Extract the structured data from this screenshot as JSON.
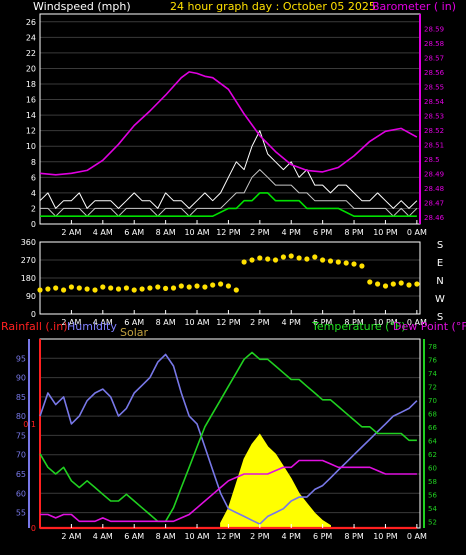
{
  "header": {
    "left_title": "Windspeed (mph)",
    "center_title": "24 hour graph day : October 05 2025",
    "right_title": "Barometer ( in)"
  },
  "bottom_header": {
    "rainfall": "Rainfall (.in)",
    "humidity": "Humidity",
    "solar": "Solar",
    "temperature": "Temperature (°F)",
    "dewpoint": "Dew Point (°F)"
  },
  "colors": {
    "background": "#000000",
    "axis": "#ffffff",
    "grid": "#3a3a3a",
    "wind": "#c8c8c8",
    "gust": "#ffffff",
    "wind_avg": "#00e000",
    "barometer": "#e000e0",
    "direction": "#ffe000",
    "humidity": "#7878e8",
    "temperature": "#20d020",
    "dewpoint": "#e010e0",
    "solar": "#ffff00",
    "rain": "#ff2020",
    "header_yellow": "#ffe000",
    "header_white": "#ffffff",
    "header_magenta": "#e000e0",
    "rain_label": "#ff2020",
    "humidity_label": "#8080ff",
    "solar_label": "#c0a040",
    "temp_label": "#20e020",
    "dew_label": "#e010e0"
  },
  "x_ticks": [
    "2 AM",
    "4 AM",
    "6 AM",
    "8 AM",
    "10 AM",
    "12 PM",
    "2 PM",
    "4 PM",
    "6 PM",
    "8 PM",
    "10 PM",
    "0 AM"
  ],
  "chart_data": [
    {
      "type": "line",
      "name": "wind_barometer",
      "x_unit": "hours",
      "xlim": [
        0,
        24.2
      ],
      "wind_ylim": [
        0,
        27
      ],
      "wind_ticks": [
        "0",
        "2",
        "4",
        "6",
        "8",
        "10",
        "12",
        "14",
        "16",
        "18",
        "20",
        "22",
        "24",
        "26"
      ],
      "baro_ylim": [
        28.455,
        28.6
      ],
      "baro_ticks": [
        "28.46",
        "28.47",
        "28.48",
        "28.49",
        "28.5",
        "28.51",
        "28.52",
        "28.53",
        "28.54",
        "28.55",
        "28.56",
        "28.57",
        "28.58",
        "28.59"
      ],
      "series": [
        {
          "key": "gust",
          "x": [
            0,
            0.5,
            1,
            1.5,
            2,
            2.5,
            3,
            3.5,
            4,
            4.5,
            5,
            5.5,
            6,
            6.5,
            7,
            7.5,
            8,
            8.5,
            9,
            9.5,
            10,
            10.5,
            11,
            11.5,
            12,
            12.5,
            13,
            13.5,
            14,
            14.5,
            15,
            15.5,
            16,
            16.5,
            17,
            17.5,
            18,
            18.5,
            19,
            19.5,
            20,
            20.5,
            21,
            21.5,
            22,
            22.5,
            23,
            23.5,
            24
          ],
          "y": [
            3,
            4,
            2,
            3,
            3,
            4,
            2,
            3,
            3,
            3,
            2,
            3,
            4,
            3,
            3,
            2,
            4,
            3,
            3,
            2,
            3,
            4,
            3,
            4,
            6,
            8,
            7,
            10,
            12,
            9,
            8,
            7,
            8,
            6,
            7,
            5,
            5,
            4,
            5,
            5,
            4,
            3,
            3,
            4,
            3,
            2,
            3,
            2,
            3
          ]
        },
        {
          "key": "wind",
          "x": [
            0,
            0.5,
            1,
            1.5,
            2,
            2.5,
            3,
            3.5,
            4,
            4.5,
            5,
            5.5,
            6,
            6.5,
            7,
            7.5,
            8,
            8.5,
            9,
            9.5,
            10,
            10.5,
            11,
            11.5,
            12,
            12.5,
            13,
            13.5,
            14,
            14.5,
            15,
            15.5,
            16,
            16.5,
            17,
            17.5,
            18,
            18.5,
            19,
            19.5,
            20,
            20.5,
            21,
            21.5,
            22,
            22.5,
            23,
            23.5,
            24
          ],
          "y": [
            2,
            2,
            1,
            2,
            2,
            2,
            1,
            2,
            2,
            2,
            1,
            2,
            2,
            2,
            2,
            1,
            2,
            2,
            2,
            1,
            2,
            2,
            2,
            2,
            3,
            4,
            4,
            6,
            7,
            6,
            5,
            5,
            5,
            4,
            4,
            3,
            3,
            3,
            3,
            3,
            2,
            2,
            2,
            2,
            2,
            1,
            2,
            1,
            2
          ]
        },
        {
          "key": "wind_avg",
          "x": [
            0,
            1,
            2,
            3,
            4,
            5,
            6,
            7,
            8,
            9,
            10,
            11,
            12,
            12.5,
            13,
            13.5,
            14,
            14.5,
            15,
            15.5,
            16,
            16.5,
            17,
            18,
            19,
            20,
            21,
            22,
            23,
            24
          ],
          "y": [
            1,
            1,
            1,
            1,
            1,
            1,
            1,
            1,
            1,
            1,
            1,
            1,
            2,
            2,
            3,
            3,
            4,
            4,
            3,
            3,
            3,
            3,
            2,
            2,
            2,
            1,
            1,
            1,
            1,
            1
          ]
        },
        {
          "key": "barometer",
          "x": [
            0,
            1,
            2,
            3,
            4,
            5,
            6,
            7,
            8,
            9,
            9.5,
            10,
            10.5,
            11,
            12,
            13,
            14,
            15,
            16,
            17,
            18,
            19,
            20,
            21,
            22,
            23,
            24
          ],
          "y": [
            28.49,
            28.489,
            28.49,
            28.492,
            28.499,
            28.51,
            28.523,
            28.533,
            28.544,
            28.556,
            28.56,
            28.559,
            28.557,
            28.556,
            28.548,
            28.531,
            28.516,
            28.505,
            28.496,
            28.492,
            28.491,
            28.494,
            28.502,
            28.512,
            28.519,
            28.521,
            28.515
          ]
        }
      ]
    },
    {
      "type": "scatter",
      "name": "wind_direction",
      "x_unit": "hours",
      "xlim": [
        0,
        24.2
      ],
      "ylim": [
        0,
        360
      ],
      "y_ticks": [
        "0",
        "90",
        "180",
        "270",
        "360"
      ],
      "compass_labels": [
        "S",
        "E",
        "N",
        "W",
        "S"
      ],
      "x": [
        0,
        0.5,
        1,
        1.5,
        2,
        2.5,
        3,
        3.5,
        4,
        4.5,
        5,
        5.5,
        6,
        6.5,
        7,
        7.5,
        8,
        8.5,
        9,
        9.5,
        10,
        10.5,
        11,
        11.5,
        12,
        12.5,
        13,
        13.5,
        14,
        14.5,
        15,
        15.5,
        16,
        16.5,
        17,
        17.5,
        18,
        18.5,
        19,
        19.5,
        20,
        20.5,
        21,
        21.5,
        22,
        22.5,
        23,
        23.5,
        24
      ],
      "y": [
        120,
        125,
        130,
        120,
        135,
        130,
        125,
        120,
        135,
        130,
        125,
        130,
        120,
        125,
        130,
        135,
        128,
        130,
        140,
        135,
        140,
        135,
        145,
        150,
        140,
        120,
        260,
        270,
        280,
        275,
        270,
        285,
        290,
        280,
        275,
        285,
        270,
        265,
        260,
        255,
        250,
        240,
        160,
        150,
        140,
        150,
        155,
        145,
        150
      ]
    },
    {
      "type": "line",
      "name": "rain_humidity_solar_temperature_dewpoint",
      "x_unit": "hours",
      "xlim": [
        0,
        24.2
      ],
      "humidity_ylim": [
        51,
        100
      ],
      "humidity_ticks": [
        "55",
        "60",
        "65",
        "70",
        "75",
        "80",
        "85",
        "90",
        "95"
      ],
      "rain_ylim": [
        0,
        0.1
      ],
      "rain_ticks": [
        "0",
        "0.1"
      ],
      "temp_ylim": [
        51,
        79
      ],
      "temp_ticks": [
        "52",
        "54",
        "56",
        "58",
        "60",
        "62",
        "64",
        "66",
        "68",
        "70",
        "72",
        "74",
        "76",
        "78"
      ],
      "series": [
        {
          "key": "solar",
          "x": [
            11.5,
            12,
            12.5,
            13,
            13.5,
            14,
            14.5,
            15,
            15.5,
            16,
            16.5,
            17,
            17.5,
            18,
            18.5
          ],
          "y": [
            2,
            8,
            18,
            28,
            34,
            38,
            33,
            30,
            25,
            20,
            14,
            10,
            6,
            3,
            1
          ]
        },
        {
          "key": "humidity",
          "x": [
            0,
            0.5,
            1,
            1.5,
            2,
            2.5,
            3,
            3.5,
            4,
            4.5,
            5,
            5.5,
            6,
            6.5,
            7,
            7.5,
            8,
            8.5,
            9,
            9.5,
            10,
            10.5,
            11,
            11.5,
            12,
            12.5,
            13,
            13.5,
            14,
            14.5,
            15,
            15.5,
            16,
            16.5,
            17,
            17.5,
            18,
            18.5,
            19,
            19.5,
            20,
            20.5,
            21,
            21.5,
            22,
            22.5,
            23,
            23.5,
            24
          ],
          "y": [
            80,
            86,
            83,
            85,
            78,
            80,
            84,
            86,
            87,
            85,
            80,
            82,
            86,
            88,
            90,
            94,
            96,
            93,
            86,
            80,
            78,
            72,
            66,
            60,
            56,
            55,
            54,
            53,
            52,
            54,
            55,
            56,
            58,
            59,
            59,
            61,
            62,
            64,
            66,
            68,
            70,
            72,
            74,
            76,
            78,
            80,
            81,
            82,
            84
          ]
        },
        {
          "key": "temperature",
          "x": [
            0,
            0.5,
            1,
            1.5,
            2,
            2.5,
            3,
            3.5,
            4,
            4.5,
            5,
            5.5,
            6,
            6.5,
            7,
            7.5,
            8,
            8.5,
            9,
            9.5,
            10,
            10.5,
            11,
            11.5,
            12,
            12.5,
            13,
            13.5,
            14,
            14.5,
            15,
            15.5,
            16,
            16.5,
            17,
            17.5,
            18,
            18.5,
            19,
            19.5,
            20,
            20.5,
            21,
            21.5,
            22,
            22.5,
            23,
            23.5,
            24
          ],
          "y": [
            62,
            60,
            59,
            60,
            58,
            57,
            58,
            57,
            56,
            55,
            55,
            56,
            55,
            54,
            53,
            52,
            52,
            54,
            57,
            60,
            63,
            66,
            68,
            70,
            72,
            74,
            76,
            77,
            76,
            76,
            75,
            74,
            73,
            73,
            72,
            71,
            70,
            70,
            69,
            68,
            67,
            66,
            66,
            65,
            65,
            65,
            65,
            64,
            64
          ]
        },
        {
          "key": "dewpoint",
          "x": [
            0,
            0.5,
            1,
            1.5,
            2,
            2.5,
            3,
            3.5,
            4,
            4.5,
            5,
            5.5,
            6,
            6.5,
            7,
            7.5,
            8,
            8.5,
            9,
            9.5,
            10,
            10.5,
            11,
            11.5,
            12,
            12.5,
            13,
            13.5,
            14,
            14.5,
            15,
            15.5,
            16,
            16.5,
            17,
            17.5,
            18,
            18.5,
            19,
            19.5,
            20,
            20.5,
            21,
            21.5,
            22,
            22.5,
            23,
            23.5,
            24
          ],
          "y": [
            53,
            53,
            52.5,
            53,
            53,
            52,
            52,
            52,
            52.5,
            52,
            52,
            52,
            52,
            52,
            52,
            52,
            52,
            52,
            52.5,
            53,
            54,
            55,
            56,
            57,
            58,
            58.5,
            59,
            59,
            59,
            59,
            59.5,
            60,
            60,
            61,
            61,
            61,
            61,
            60.5,
            60,
            60,
            60,
            60,
            60,
            59.5,
            59,
            59,
            59,
            59,
            59
          ]
        },
        {
          "key": "rain",
          "x": [
            0,
            24
          ],
          "y": [
            0,
            0
          ]
        }
      ]
    }
  ]
}
